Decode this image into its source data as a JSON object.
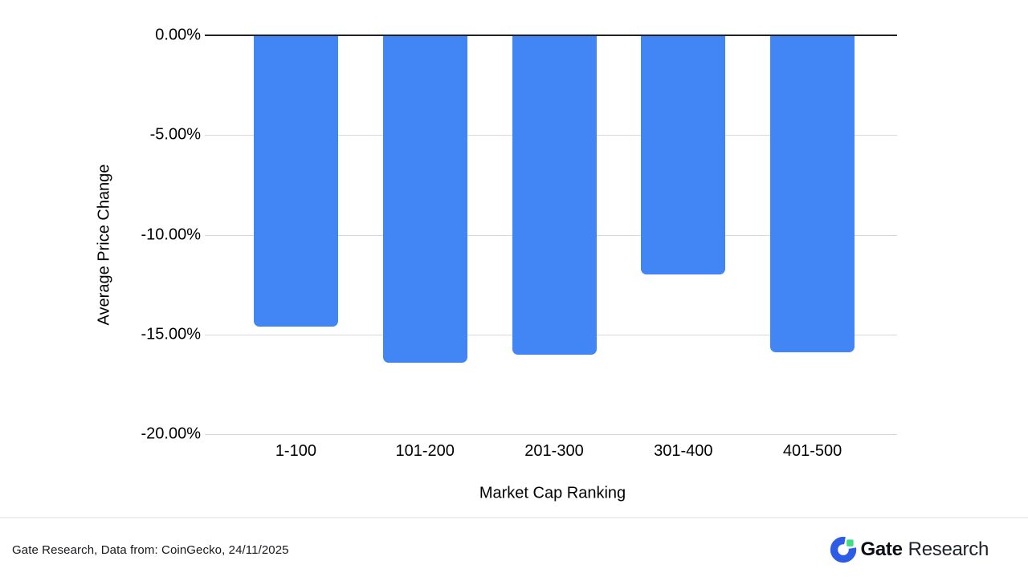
{
  "chart_data": {
    "type": "bar",
    "categories": [
      "1-100",
      "101-200",
      "201-300",
      "301-400",
      "401-500"
    ],
    "values": [
      -14.6,
      -16.4,
      -16.0,
      -12.0,
      -15.9
    ],
    "title": "",
    "xlabel": "Market Cap Ranking",
    "ylabel": "Average Price Change",
    "ylim": [
      -20,
      0
    ],
    "yticks": {
      "labels": [
        "0.00%",
        "-5.00%",
        "-10.00%",
        "-15.00%",
        "-20.00%"
      ],
      "values": [
        0,
        -5,
        -10,
        -15,
        -20
      ]
    },
    "grid": true,
    "legend": "none",
    "bar_color": "#4285f4",
    "axis_line_color": "#212121",
    "gridline_color": "#d9d9d9"
  },
  "footer": {
    "source_text": "Gate Research, Data from: CoinGecko, 24/11/2025",
    "logo": {
      "icon": "gate-logo-icon",
      "brand_bold": "Gate",
      "brand_regular": "Research",
      "icon_blue": "#2d5ce6",
      "icon_green": "#3edc84"
    }
  }
}
